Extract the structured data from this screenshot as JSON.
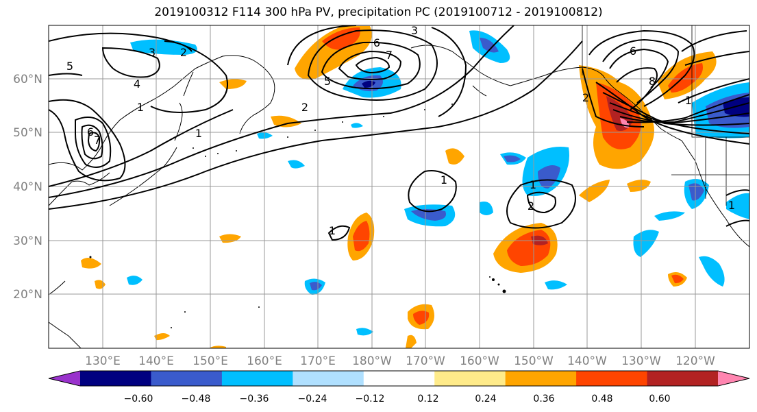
{
  "title": "2019100312 F114 300 hPa PV, precipitation PC (2019100712 - 2019100812)",
  "map": {
    "lat_labels": [
      "60°N",
      "50°N",
      "40°N",
      "30°N",
      "20°N"
    ],
    "lon_labels": [
      "130°E",
      "140°E",
      "150°E",
      "160°E",
      "170°E",
      "180°W",
      "170°W",
      "160°W",
      "150°W",
      "140°W",
      "130°W",
      "120°W"
    ],
    "contour_labels": [
      "5",
      "3",
      "2",
      "4",
      "6",
      "7",
      "1",
      "1",
      "5",
      "2",
      "6",
      "7",
      "3",
      "6",
      "8",
      "2",
      "1",
      "1",
      "1",
      "2",
      "1",
      "1"
    ],
    "axis_label_color": "#808080"
  },
  "colorbar": {
    "colors": [
      "#9932cc",
      "#000080",
      "#3a5bcc",
      "#00bfff",
      "#b0e0ff",
      "#ffffff",
      "#ffeb8a",
      "#ffa500",
      "#ff4500",
      "#b22222",
      "#ff85b0"
    ],
    "tick_labels": [
      "−0.60",
      "−0.48",
      "−0.36",
      "−0.24",
      "−0.12",
      "0.12",
      "0.24",
      "0.36",
      "0.48",
      "0.60"
    ]
  }
}
